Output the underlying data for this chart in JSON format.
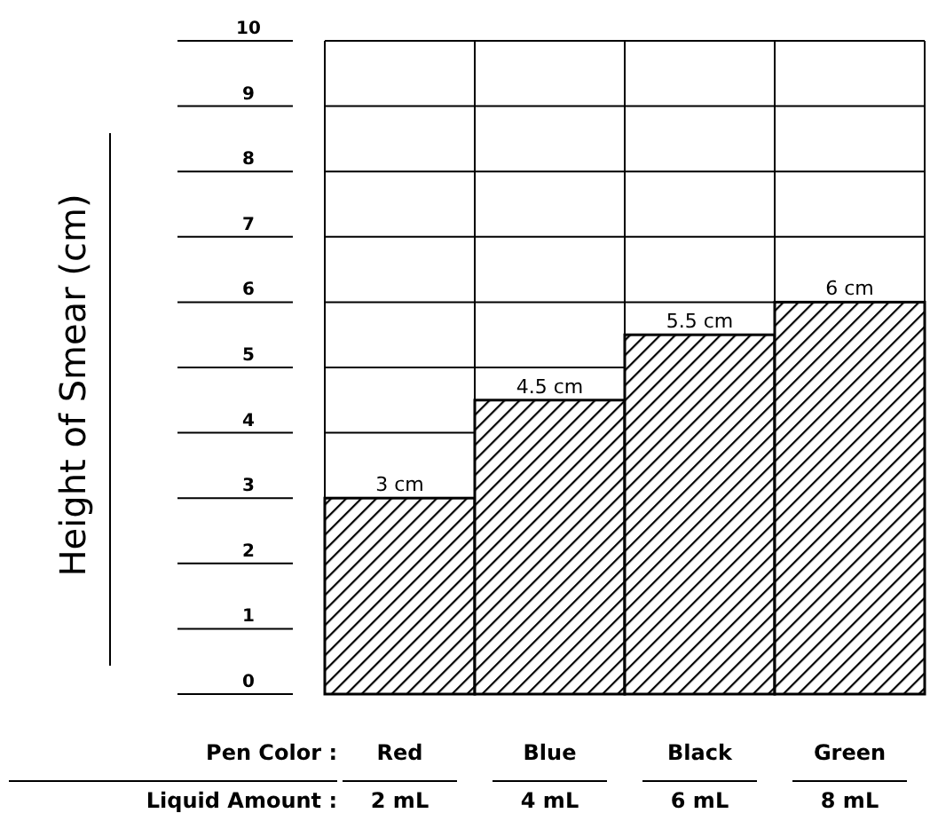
{
  "chart_data": {
    "type": "bar",
    "ylabel": "Height of Smear (cm)",
    "xlabel": "Pen Color :",
    "categories": [
      "Red",
      "Blue",
      "Black",
      "Green"
    ],
    "values": [
      3,
      4.5,
      5.5,
      6
    ],
    "value_labels": [
      "3 cm",
      "4.5 cm",
      "5.5 cm",
      "6 cm"
    ],
    "color": "#000000",
    "ylim": [
      0,
      10
    ],
    "yticks": [
      0,
      1,
      2,
      3,
      4,
      5,
      6,
      7,
      8,
      9,
      10
    ],
    "grid": true,
    "annotations": [
      "Liquid Amount :",
      "2 mL",
      "4 mL",
      "6 mL",
      "8 mL"
    ]
  }
}
